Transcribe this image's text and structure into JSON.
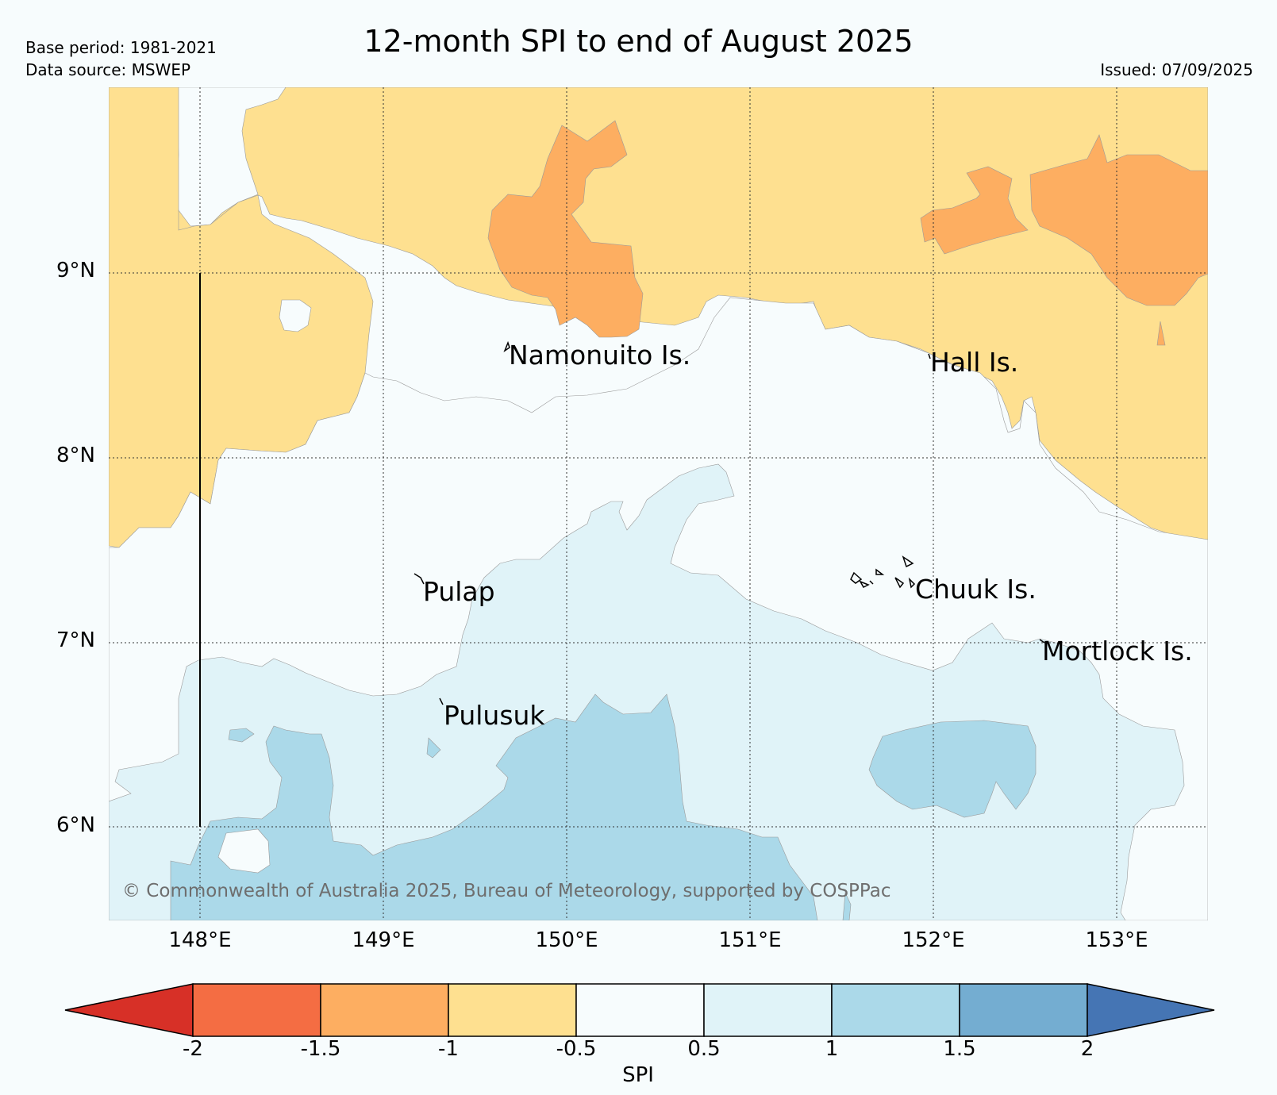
{
  "header": {
    "title": "12-month SPI to end of August 2025",
    "base_period": "Base period: 1981-2021",
    "data_source": "Data source: MSWEP",
    "issued": "Issued: 07/09/2025"
  },
  "axes": {
    "lat_labels": [
      "9°N",
      "8°N",
      "7°N",
      "6°N"
    ],
    "lon_labels": [
      "148°E",
      "149°E",
      "150°E",
      "151°E",
      "152°E",
      "153°E"
    ]
  },
  "places": {
    "namonuito": "Namonuito Is.",
    "hall": "Hall Is.",
    "pulap": "Pulap",
    "chuuk": "Chuuk Is.",
    "mortlock": "Mortlock Is.",
    "pulusuk": "Pulusuk"
  },
  "copyright": "© Commonwealth of Australia 2025, Bureau of Meteorology, supported by COSPPac",
  "colorbar": {
    "title": "SPI",
    "ticks": [
      "-2",
      "-1.5",
      "-1",
      "-0.5",
      "0.5",
      "1",
      "1.5",
      "2"
    ],
    "colors": {
      "below_min": "#d73027",
      "n2_n15": "#f46d43",
      "n15_n1": "#fdae61",
      "n1_n05": "#fee090",
      "n05_05": "#f7fcfd",
      "05_1": "#e0f3f8",
      "1_15": "#abd9e9",
      "15_2": "#74add1",
      "above_max": "#4575b4"
    }
  }
}
